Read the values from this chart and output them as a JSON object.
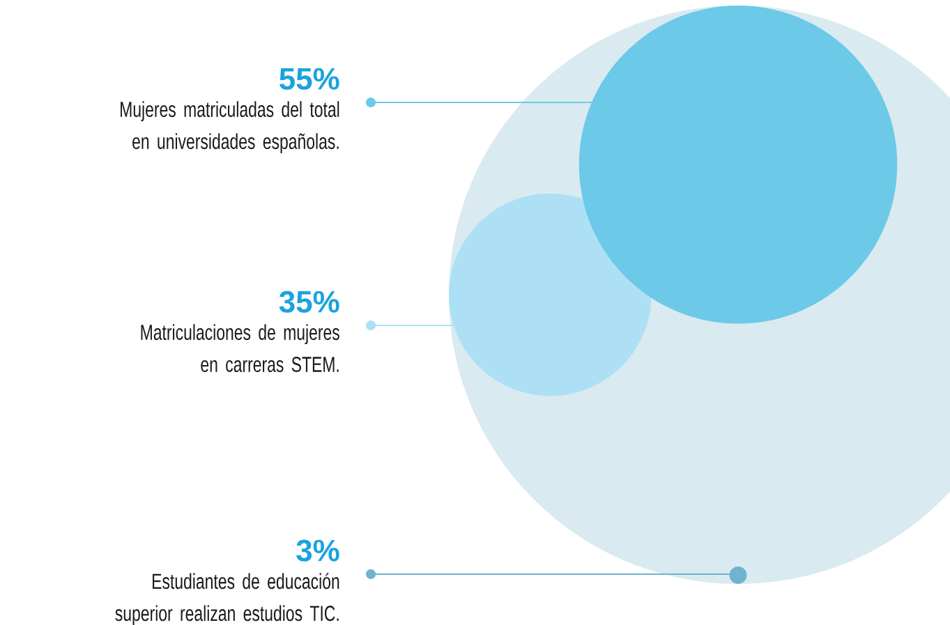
{
  "chart_data": {
    "type": "other",
    "categories": [
      "Mujeres matriculadas del total en universidades españolas.",
      "Matriculaciones de mujeres en carreras STEM.",
      "Estudiantes de educación superior realizan estudios TIC."
    ],
    "values": [
      55,
      35,
      3
    ],
    "value_labels": [
      "55%",
      "35%",
      "3%"
    ],
    "colors": [
      "#6cc9e8",
      "#ade0f4",
      "#6fb3cf"
    ]
  }
}
